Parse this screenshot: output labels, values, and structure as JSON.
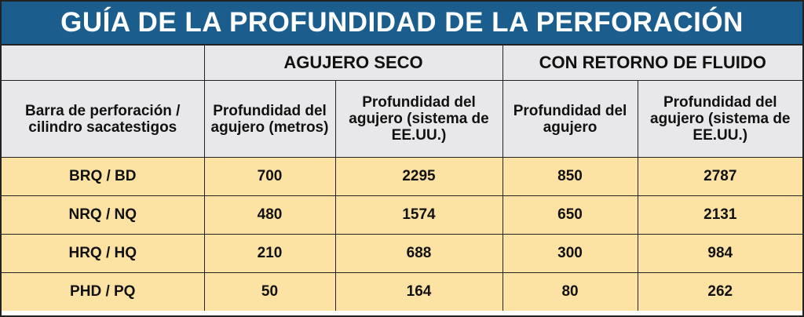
{
  "title": "GUÍA DE LA PROFUNDIDAD DE LA PERFORACIÓN",
  "table": {
    "group_headers": [
      "AGUJERO SECO",
      "CON RETORNO DE FLUIDO"
    ],
    "column_headers": [
      "Barra de perforación / cilindro sacatestigos",
      "Profundidad del agujero (metros)",
      "Profundidad del agujero (sistema de EE.UU.)",
      "Profundidad del agujero",
      "Profundidad del agujero (sistema de EE.UU.)"
    ],
    "rows": [
      [
        "BRQ / BD",
        700,
        2295,
        850,
        2787
      ],
      [
        "NRQ / NQ",
        480,
        1574,
        650,
        2131
      ],
      [
        "HRQ / HQ",
        210,
        688,
        300,
        984
      ],
      [
        "PHD / PQ",
        50,
        164,
        80,
        262
      ]
    ]
  }
}
